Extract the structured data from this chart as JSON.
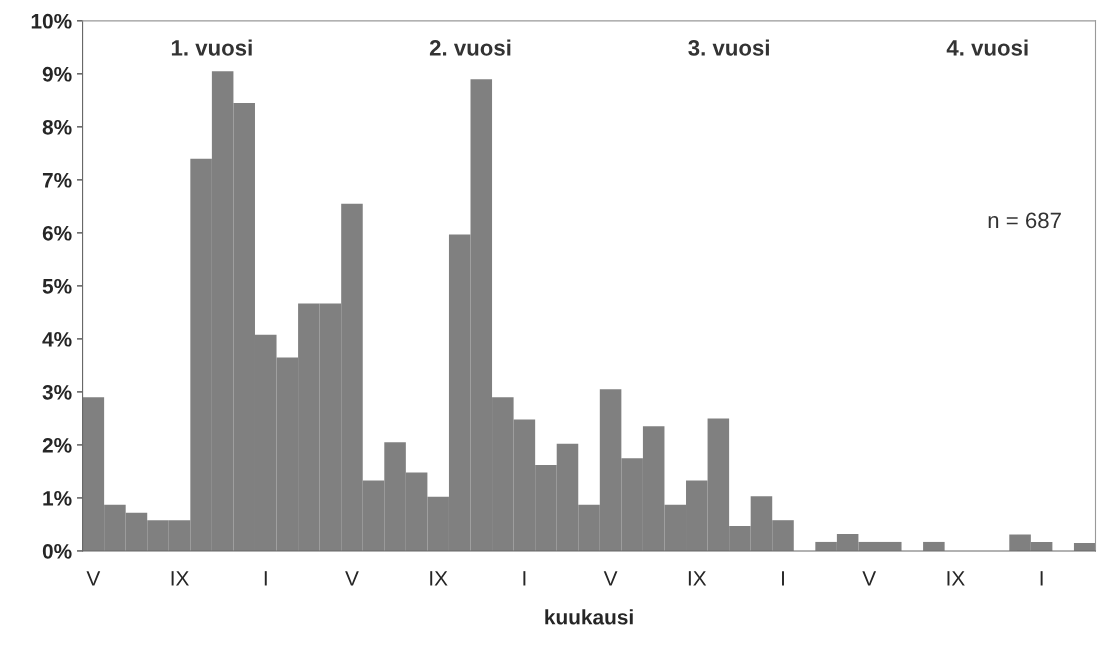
{
  "chart_data": {
    "type": "bar",
    "xlabel": "kuukausi",
    "categories": [
      "V",
      null,
      null,
      null,
      "IX",
      null,
      null,
      null,
      "I",
      null,
      null,
      null,
      "V",
      null,
      null,
      null,
      "IX",
      null,
      null,
      null,
      "I",
      null,
      null,
      null,
      "V",
      null,
      null,
      null,
      "IX",
      null,
      null,
      null,
      "I",
      null,
      null,
      null,
      "V",
      null,
      null,
      null,
      "IX",
      null,
      null,
      null,
      "I",
      null,
      null
    ],
    "values": [
      2.9,
      0.87,
      0.72,
      0.58,
      0.58,
      7.4,
      9.05,
      8.45,
      4.08,
      3.65,
      4.67,
      4.67,
      6.55,
      1.33,
      2.05,
      1.48,
      1.02,
      5.97,
      8.9,
      2.9,
      2.48,
      1.62,
      2.02,
      0.87,
      3.05,
      1.75,
      2.35,
      0.87,
      1.33,
      2.5,
      0.47,
      1.03,
      0.58,
      0,
      0.17,
      0.32,
      0.17,
      0.17,
      0,
      0.17,
      0,
      0,
      0,
      0.31,
      0.17,
      0,
      0.15
    ],
    "color": "#808080",
    "ylim": [
      0,
      10
    ],
    "yticks": [
      {
        "value": 0,
        "label": "0%"
      },
      {
        "value": 1,
        "label": "1%"
      },
      {
        "value": 2,
        "label": "2%"
      },
      {
        "value": 3,
        "label": "3%"
      },
      {
        "value": 4,
        "label": "4%"
      },
      {
        "value": 5,
        "label": "5%"
      },
      {
        "value": 6,
        "label": "6%"
      },
      {
        "value": 7,
        "label": "7%"
      },
      {
        "value": 8,
        "label": "8%"
      },
      {
        "value": 9,
        "label": "9%"
      },
      {
        "value": 10,
        "label": "10%"
      }
    ],
    "grid": false,
    "legend": false,
    "annotations": [
      "1. vuosi",
      "2. vuosi",
      "3. vuosi",
      "4. vuosi",
      "n = 687"
    ]
  }
}
